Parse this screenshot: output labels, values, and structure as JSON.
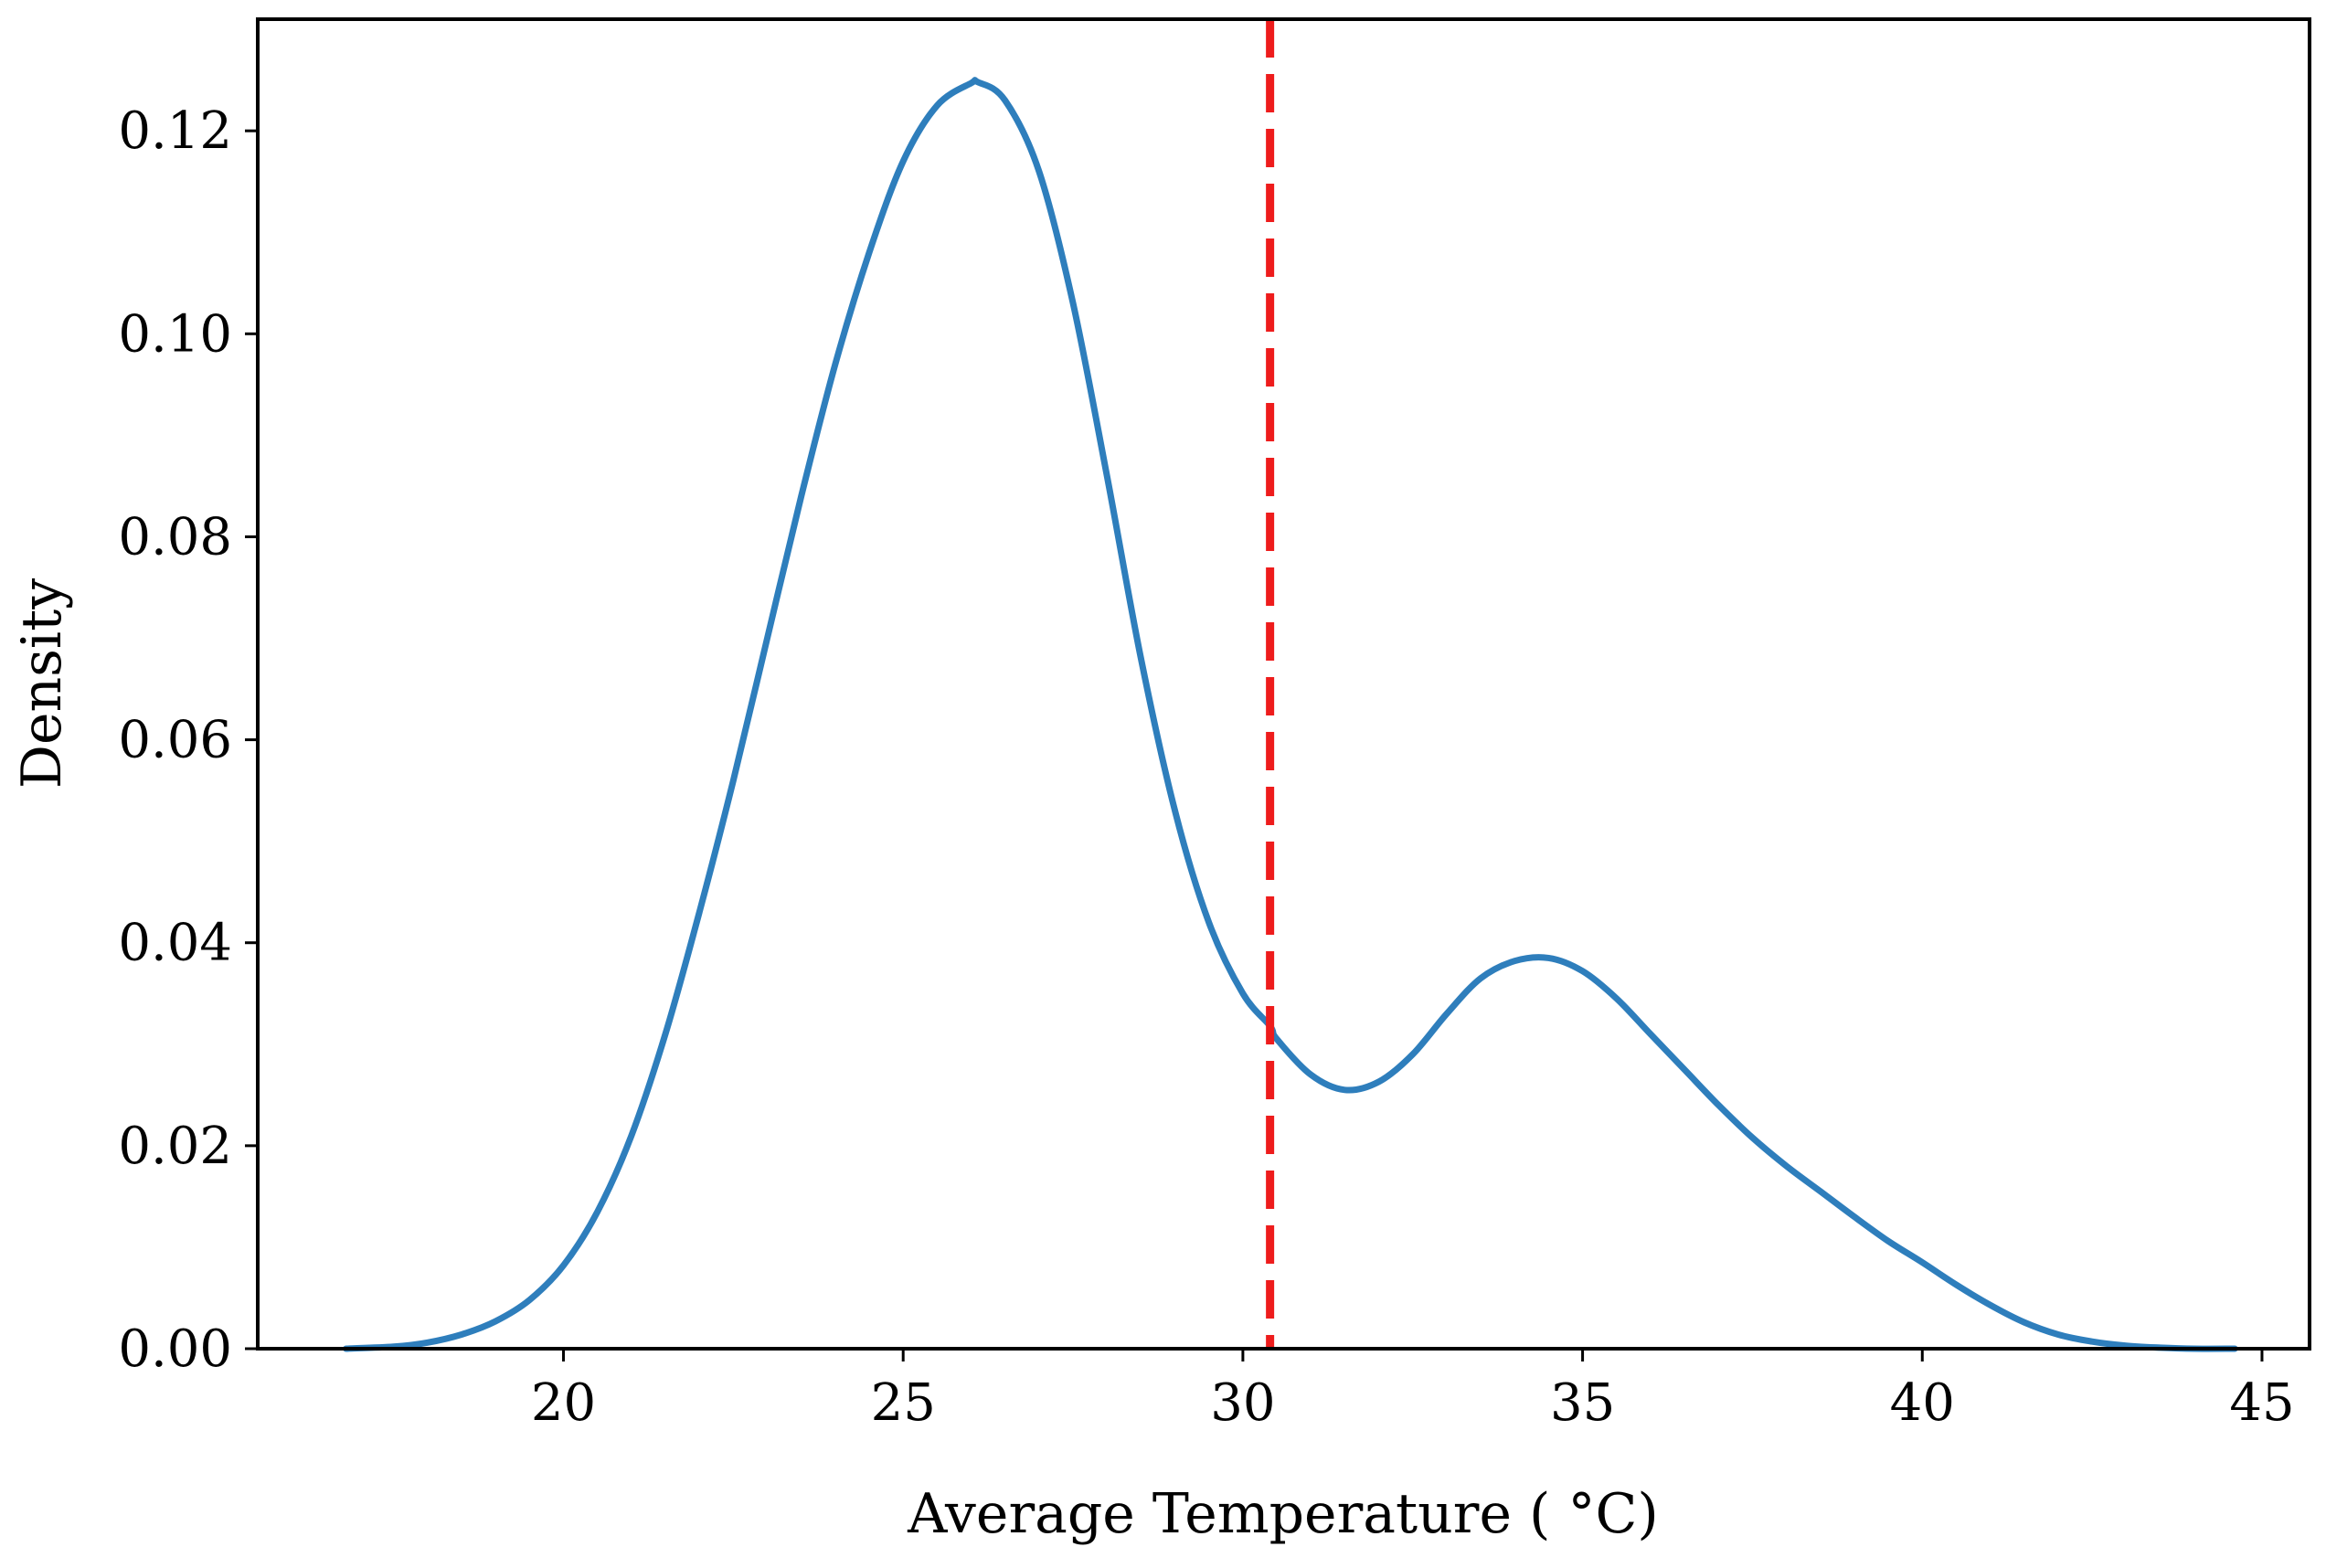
{
  "chart_data": {
    "type": "line",
    "title": "",
    "xlabel": "Average Temperature ( °C)",
    "ylabel": "Density",
    "xlim": [
      15.5,
      45.7
    ],
    "ylim": [
      0.0,
      0.131
    ],
    "xticks": [
      20,
      25,
      30,
      35,
      40,
      45
    ],
    "xtick_labels": [
      "20",
      "25",
      "30",
      "35",
      "40",
      "45"
    ],
    "yticks": [
      0.0,
      0.02,
      0.04,
      0.06,
      0.08,
      0.1,
      0.12
    ],
    "ytick_labels": [
      "0.00",
      "0.02",
      "0.04",
      "0.06",
      "0.08",
      "0.10",
      "0.12"
    ],
    "grid": false,
    "series": [
      {
        "name": "density",
        "color": "#2e7ebc",
        "x": [
          16.8,
          17.5,
          18.0,
          18.5,
          19.0,
          19.5,
          20.0,
          20.5,
          21.0,
          21.5,
          22.0,
          22.5,
          23.0,
          23.5,
          24.0,
          24.5,
          25.0,
          25.5,
          26.0,
          26.1,
          26.5,
          27.0,
          27.5,
          28.0,
          28.5,
          29.0,
          29.5,
          30.0,
          30.4,
          30.5,
          31.0,
          31.5,
          32.0,
          32.5,
          33.0,
          33.5,
          34.0,
          34.5,
          35.0,
          35.5,
          36.0,
          36.5,
          37.0,
          37.5,
          38.0,
          38.5,
          39.0,
          39.5,
          40.0,
          40.5,
          41.0,
          41.5,
          42.0,
          42.5,
          43.0,
          43.5,
          44.0,
          44.6
        ],
        "y": [
          0.0,
          0.0002,
          0.0006,
          0.0014,
          0.0027,
          0.0048,
          0.0082,
          0.0135,
          0.021,
          0.031,
          0.043,
          0.056,
          0.07,
          0.084,
          0.097,
          0.108,
          0.117,
          0.1225,
          0.1247,
          0.1248,
          0.123,
          0.116,
          0.103,
          0.086,
          0.068,
          0.053,
          0.042,
          0.035,
          0.0318,
          0.0305,
          0.027,
          0.0255,
          0.0263,
          0.029,
          0.033,
          0.0365,
          0.0382,
          0.0385,
          0.0372,
          0.0345,
          0.031,
          0.0275,
          0.024,
          0.0208,
          0.018,
          0.0155,
          0.013,
          0.0106,
          0.0085,
          0.0063,
          0.0043,
          0.0026,
          0.0014,
          0.0007,
          0.0003,
          0.0001,
          0.0,
          0.0
        ]
      }
    ],
    "annotations": [
      {
        "type": "vline",
        "x": 30.4,
        "color": "#ee1c1c",
        "style": "dashed"
      }
    ]
  }
}
